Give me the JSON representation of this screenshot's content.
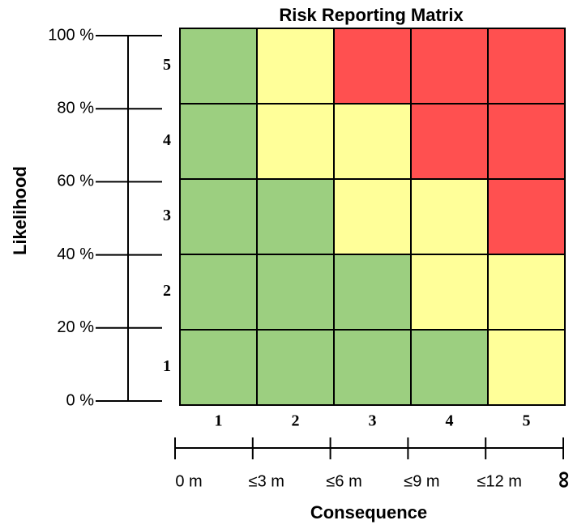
{
  "title": "Risk Reporting Matrix",
  "y_axis": {
    "label": "Likelihood",
    "ticks": [
      "100 %",
      "80 %",
      "60 %",
      "40 %",
      "20 %",
      "0 %"
    ]
  },
  "x_axis": {
    "label": "Consequence",
    "ticks": [
      "0 m",
      "≤3 m",
      "≤6 m",
      "≤9 m",
      "≤12 m",
      "∞"
    ]
  },
  "matrix": {
    "column_labels": [
      "1",
      "2",
      "3",
      "4",
      "5"
    ],
    "rows": [
      {
        "label": "5",
        "colors": [
          "#9ccf80",
          "#ffff99",
          "#ff5050",
          "#ff5050",
          "#ff5050"
        ]
      },
      {
        "label": "4",
        "colors": [
          "#9ccf80",
          "#ffff99",
          "#ffff99",
          "#ff5050",
          "#ff5050"
        ]
      },
      {
        "label": "3",
        "colors": [
          "#9ccf80",
          "#9ccf80",
          "#ffff99",
          "#ffff99",
          "#ff5050"
        ]
      },
      {
        "label": "2",
        "colors": [
          "#9ccf80",
          "#9ccf80",
          "#9ccf80",
          "#ffff99",
          "#ffff99"
        ]
      },
      {
        "label": "1",
        "colors": [
          "#9ccf80",
          "#9ccf80",
          "#9ccf80",
          "#9ccf80",
          "#ffff99"
        ]
      }
    ]
  }
}
